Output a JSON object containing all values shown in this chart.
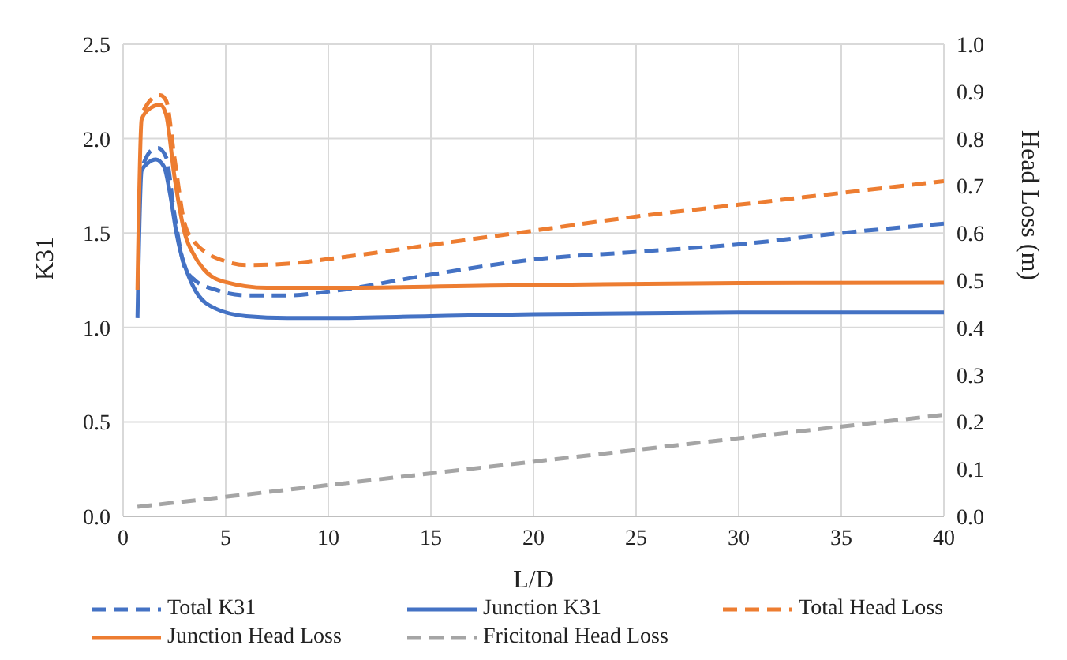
{
  "chart_data": {
    "type": "line",
    "xlabel": "L/D",
    "ylabel": "K31",
    "y2label": "Head Loss (m)",
    "xlim": [
      0,
      40
    ],
    "xticks": [
      0,
      5,
      10,
      15,
      20,
      25,
      30,
      35,
      40
    ],
    "ylim": [
      0,
      2.5
    ],
    "yticks": [
      {
        "value": 0,
        "label": "0.0"
      },
      {
        "value": 0.5,
        "label": "0.5"
      },
      {
        "value": 1,
        "label": "1.0"
      },
      {
        "value": 1.5,
        "label": "1.5"
      },
      {
        "value": 2,
        "label": "2.0"
      },
      {
        "value": 2.5,
        "label": "2.5"
      }
    ],
    "y2lim": [
      0,
      1
    ],
    "y2ticks": [
      {
        "value": 0,
        "label": "0.0"
      },
      {
        "value": 0.1,
        "label": "0.1"
      },
      {
        "value": 0.2,
        "label": "0.2"
      },
      {
        "value": 0.3,
        "label": "0.3"
      },
      {
        "value": 0.4,
        "label": "0.4"
      },
      {
        "value": 0.5,
        "label": "0.5"
      },
      {
        "value": 0.6,
        "label": "0.6"
      },
      {
        "value": 0.7,
        "label": "0.7"
      },
      {
        "value": 0.8,
        "label": "0.8"
      },
      {
        "value": 0.9,
        "label": "0.9"
      },
      {
        "value": 1,
        "label": "1.0"
      }
    ],
    "grid": true,
    "legend": "bottom",
    "marker": "none",
    "series": [
      {
        "name": "Total K31",
        "color": "#4472c4",
        "line_style": "dashed",
        "x": [
          1.0,
          1.3,
          1.7,
          2.1,
          2.5,
          3,
          3.5,
          4.5,
          6,
          8,
          10,
          15,
          20,
          25,
          30,
          35,
          40
        ],
        "values": [
          1.87,
          1.93,
          1.95,
          1.9,
          1.6,
          1.32,
          1.25,
          1.2,
          1.17,
          1.17,
          1.19,
          1.28,
          1.36,
          1.4,
          1.44,
          1.5,
          1.55
        ]
      },
      {
        "name": "Junction K31",
        "color": "#4472c4",
        "line_style": "solid",
        "x": [
          0.7,
          0.9,
          1.2,
          1.6,
          2.0,
          2.3,
          2.6,
          2.8,
          3.2,
          3.5,
          4.5,
          6,
          8,
          10,
          15,
          20,
          30,
          40
        ],
        "values": [
          1.05,
          1.83,
          1.87,
          1.89,
          1.85,
          1.7,
          1.5,
          1.4,
          1.27,
          1.2,
          1.1,
          1.06,
          1.05,
          1.05,
          1.06,
          1.07,
          1.08,
          1.08
        ]
      },
      {
        "name": "Total Head Loss",
        "color": "#ed7d31",
        "axis": "y2",
        "line_style": "dashed",
        "x": [
          1.0,
          1.3,
          1.8,
          2.1,
          2.5,
          3,
          3.5,
          4,
          5,
          6,
          8,
          10,
          15,
          20,
          25,
          30,
          35,
          40
        ],
        "values": [
          0.86,
          0.88,
          0.892,
          0.88,
          0.76,
          0.62,
          0.58,
          0.56,
          0.54,
          0.532,
          0.535,
          0.545,
          0.575,
          0.605,
          0.635,
          0.66,
          0.685,
          0.71
        ]
      },
      {
        "name": "Junction Head Loss",
        "color": "#ed7d31",
        "axis": "y2",
        "line_style": "solid",
        "x": [
          0.7,
          0.9,
          1.2,
          1.8,
          2.1,
          2.5,
          3,
          3.5,
          4,
          5,
          7,
          10,
          20,
          30,
          40
        ],
        "values": [
          0.48,
          0.84,
          0.86,
          0.872,
          0.85,
          0.72,
          0.6,
          0.55,
          0.52,
          0.496,
          0.484,
          0.484,
          0.49,
          0.494,
          0.495
        ]
      },
      {
        "name": "Fricitonal Head Loss",
        "color": "#a5a5a5",
        "axis": "y2",
        "line_style": "dashed",
        "x": [
          0.7,
          40
        ],
        "values": [
          0.02,
          0.215
        ]
      }
    ]
  }
}
